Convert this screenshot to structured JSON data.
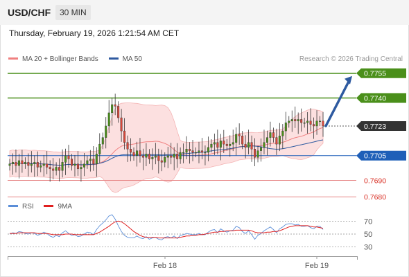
{
  "header": {
    "pair": "USD/CHF",
    "timeframe": "30 MIN"
  },
  "datetime": "Thursday, February 19, 2026 1:21:54 AM CET",
  "legend": {
    "ma20": {
      "label": "MA 20 + Bollinger Bands",
      "color": "#f08080"
    },
    "ma50": {
      "label": "MA 50",
      "color": "#2e5aa0"
    }
  },
  "copyright": "Research © 2026 Trading Central",
  "rsi_legend": {
    "rsi": {
      "label": "RSI",
      "color": "#5b8ed8"
    },
    "ma9": {
      "label": "9MA",
      "color": "#e02020"
    }
  },
  "colors": {
    "up": "#4a8f1a",
    "down": "#d9473a",
    "pivot": "#1f5fb8",
    "target": "#2e5aa0",
    "current": "#333333"
  },
  "chart_data": {
    "type": "candlestick",
    "price_ylim": [
      0.7665,
      0.7765
    ],
    "x_ticks": [
      "Feb 18",
      "Feb 19"
    ],
    "levels": [
      {
        "value": "0.7755",
        "kind": "resistance"
      },
      {
        "value": "0.7740",
        "kind": "resistance"
      },
      {
        "value": "0.7723",
        "kind": "current"
      },
      {
        "value": "0.7705",
        "kind": "pivot"
      },
      {
        "value": "0.7690",
        "kind": "support"
      },
      {
        "value": "0.7680",
        "kind": "support"
      }
    ],
    "target_arrow": {
      "from": 0.7723,
      "to": 0.7755
    },
    "candles_close": [
      0.77,
      0.7701,
      0.7699,
      0.7702,
      0.77,
      0.7701,
      0.7699,
      0.77,
      0.7701,
      0.7698,
      0.7699,
      0.77,
      0.7698,
      0.7697,
      0.7696,
      0.7698,
      0.7696,
      0.7701,
      0.7705,
      0.7703,
      0.7699,
      0.77,
      0.7697,
      0.7698,
      0.77,
      0.7702,
      0.7703,
      0.77,
      0.7706,
      0.7712,
      0.7716,
      0.7723,
      0.7731,
      0.7736,
      0.7735,
      0.7728,
      0.772,
      0.7713,
      0.7709,
      0.7707,
      0.7705,
      0.7708,
      0.7705,
      0.7704,
      0.7706,
      0.7703,
      0.7704,
      0.7705,
      0.7702,
      0.7701,
      0.7704,
      0.7705,
      0.7704,
      0.7706,
      0.7703,
      0.7707,
      0.7707,
      0.7709,
      0.7708,
      0.7707,
      0.7707,
      0.7708,
      0.7707,
      0.7707,
      0.771,
      0.7712,
      0.7713,
      0.771,
      0.7714,
      0.7712,
      0.7711,
      0.7712,
      0.7713,
      0.7718,
      0.7717,
      0.7712,
      0.771,
      0.7713,
      0.7709,
      0.7704,
      0.7708,
      0.771,
      0.7713,
      0.7716,
      0.7719,
      0.7716,
      0.7712,
      0.7717,
      0.772,
      0.7725,
      0.7726,
      0.7727,
      0.7726,
      0.7727,
      0.7725,
      0.7725,
      0.7726,
      0.7724,
      0.7723,
      0.7726,
      0.7726,
      0.7723
    ],
    "rsi_ticks": [
      70,
      50,
      30
    ],
    "rsi_ylim": [
      20,
      80
    ],
    "rsi": [
      50,
      52,
      51,
      54,
      53,
      51,
      50,
      52,
      51,
      48,
      50,
      53,
      51,
      47,
      45,
      48,
      46,
      52,
      55,
      51,
      48,
      49,
      46,
      47,
      50,
      53,
      52,
      49,
      57,
      63,
      67,
      72,
      78,
      80,
      73,
      63,
      54,
      48,
      45,
      44,
      44,
      47,
      44,
      43,
      46,
      42,
      44,
      45,
      42,
      41,
      45,
      46,
      44,
      47,
      43,
      48,
      49,
      51,
      50,
      49,
      49,
      51,
      49,
      49,
      53,
      56,
      57,
      52,
      58,
      55,
      53,
      55,
      56,
      62,
      60,
      54,
      51,
      55,
      49,
      42,
      48,
      51,
      55,
      58,
      61,
      57,
      52,
      58,
      61,
      65,
      66,
      66,
      64,
      65,
      62,
      62,
      63,
      60,
      58,
      62,
      62,
      57
    ],
    "rsi_ma": [
      51,
      51,
      51,
      52,
      52,
      52,
      52,
      52,
      52,
      51,
      51,
      51,
      51,
      50,
      49,
      49,
      49,
      49,
      50,
      50,
      50,
      49,
      49,
      49,
      49,
      49,
      49,
      49,
      51,
      53,
      56,
      59,
      62,
      66,
      69,
      70,
      69,
      66,
      62,
      58,
      54,
      51,
      48,
      46,
      45,
      45,
      45,
      45,
      44,
      44,
      44,
      44,
      44,
      44,
      44,
      45,
      46,
      47,
      47,
      48,
      48,
      49,
      49,
      50,
      51,
      52,
      53,
      53,
      54,
      54,
      55,
      55,
      55,
      56,
      56,
      56,
      56,
      56,
      55,
      53,
      52,
      52,
      52,
      53,
      53,
      54,
      54,
      55,
      57,
      59,
      61,
      62,
      63,
      63,
      63,
      63,
      63,
      62,
      61,
      61,
      60,
      59
    ]
  }
}
